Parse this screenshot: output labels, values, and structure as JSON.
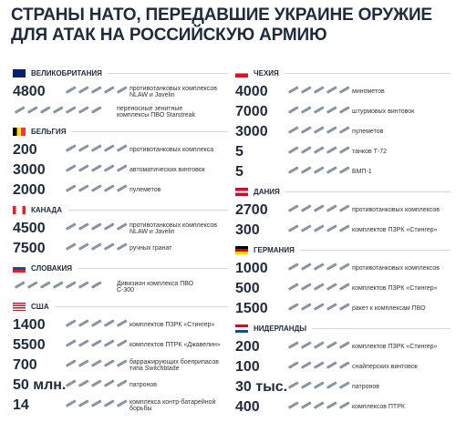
{
  "title": [
    "СТРАНЫ НАТО, ПЕРЕДАВШИЕ УКРАИНЕ ОРУЖИЕ",
    "ДЛЯ АТАК НА РОССИЙСКУЮ АРМИЮ"
  ],
  "columns": [
    {
      "countries": [
        {
          "name": "ВЕЛИКОБРИТАНИЯ",
          "items": [
            {
              "amount": "4800",
              "text": "противотанковых комплексов NLAW и Javelin"
            },
            {
              "text": "переносные зенитные комплексы ПВО Starstreak"
            }
          ]
        },
        {
          "name": "БЕЛЬГИЯ",
          "items": [
            {
              "amount": "200",
              "text": "противотанковых комплекса"
            },
            {
              "amount": "3000",
              "text": "автоматических винтовок"
            },
            {
              "amount": "2000",
              "text": "пулеметов"
            }
          ]
        },
        {
          "name": "КАНАДА",
          "items": [
            {
              "amount": "4500",
              "text": "противотанковых комплексов NLAW и Javelin"
            },
            {
              "amount": "7500",
              "text": "ручных гранат"
            }
          ]
        },
        {
          "name": "СЛОВАКИЯ",
          "items": [
            {
              "text": "Дивизион комплекса ПВО С-300"
            }
          ]
        },
        {
          "name": "США",
          "items": [
            {
              "amount": "1400",
              "text": "комплектов ПЗРК «Стингер»"
            },
            {
              "amount": "5500",
              "text": "комплектов ПТРК «Джавелин»"
            },
            {
              "amount": "700",
              "text": "барражирующих боеприпасов типа Switchblade"
            },
            {
              "amount": "50 млн.",
              "text": "патронов"
            },
            {
              "amount": "14",
              "text": "комплекса контр-батарейной борьбы"
            }
          ]
        }
      ]
    },
    {
      "countries": [
        {
          "name": "ЧЕХИЯ",
          "items": [
            {
              "amount": "4000",
              "text": "минометов"
            },
            {
              "amount": "7000",
              "text": "штурмовых винтовок"
            },
            {
              "amount": "3000",
              "text": "пулеметов"
            },
            {
              "amount": "5",
              "text": "танков Т-72"
            },
            {
              "amount": "5",
              "text": "БМП-1"
            }
          ]
        },
        {
          "name": "ДАНИЯ",
          "items": [
            {
              "amount": "2700",
              "text": "противотанковых комплексов"
            },
            {
              "amount": "300",
              "text": "комплектов ПЗРК «Стингер»"
            }
          ]
        },
        {
          "name": "ГЕРМАНИЯ",
          "items": [
            {
              "amount": "1000",
              "text": "противотанковых комплексов"
            },
            {
              "amount": "500",
              "text": "комплектов ПЗРК «Стингер»"
            },
            {
              "amount": "1500",
              "text": "ракет к комплексам ПВО"
            }
          ]
        },
        {
          "name": "НИДЕРЛАНДЫ",
          "items": [
            {
              "amount": "200",
              "text": "комплектов ПЗРК «Стингер»"
            },
            {
              "amount": "100",
              "text": "снайперских винтовок"
            },
            {
              "amount": "30 тыс.",
              "text": "патронов"
            },
            {
              "amount": "400",
              "text": "комплексов ПТРК"
            }
          ]
        }
      ]
    }
  ]
}
